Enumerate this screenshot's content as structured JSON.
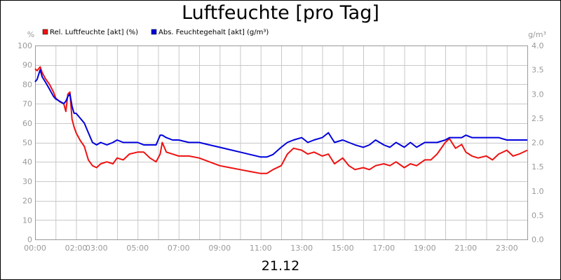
{
  "chart_data": {
    "type": "line",
    "title": "Luftfeuchte [pro Tag]",
    "xlabel": "21.12",
    "ylabel_left": "%",
    "ylabel_right": "g/m³",
    "ylim_left": [
      0,
      100
    ],
    "ylim_right": [
      0,
      4.0
    ],
    "left_ticks": [
      "0",
      "10",
      "20",
      "30",
      "40",
      "50",
      "60",
      "70",
      "80",
      "90",
      "100"
    ],
    "right_ticks": [
      "0.0",
      "0.5",
      "1.0",
      "1.5",
      "2.0",
      "2.5",
      "3.0",
      "3.5",
      "4.0"
    ],
    "x_ticks": [
      "00:00",
      "02:00",
      "03:00",
      "05:00",
      "07:00",
      "09:00",
      "11:00",
      "13:00",
      "15:00",
      "17:00",
      "19:00",
      "21:00",
      "23:00"
    ],
    "x_tick_hours": [
      0,
      2,
      3,
      5,
      7,
      9,
      11,
      13,
      15,
      17,
      19,
      21,
      23
    ],
    "x_range_hours": [
      0,
      24
    ],
    "grid": true,
    "legend_position": "top-left",
    "series": [
      {
        "name": "Rel. Luftfeuchte [akt] (%)",
        "axis": "left",
        "color": "#ee1111",
        "x": [
          0,
          0.1,
          0.25,
          0.35,
          0.5,
          0.7,
          0.9,
          1.0,
          1.2,
          1.4,
          1.5,
          1.6,
          1.7,
          1.8,
          1.9,
          2.0,
          2.2,
          2.4,
          2.6,
          2.8,
          3.0,
          3.2,
          3.5,
          3.8,
          4.0,
          4.3,
          4.6,
          5.0,
          5.3,
          5.6,
          5.9,
          6.1,
          6.2,
          6.4,
          6.7,
          7.0,
          7.5,
          8.0,
          8.5,
          9.0,
          9.5,
          10.0,
          10.5,
          11.0,
          11.3,
          11.6,
          12.0,
          12.3,
          12.6,
          13.0,
          13.3,
          13.6,
          14.0,
          14.3,
          14.6,
          15.0,
          15.3,
          15.6,
          16.0,
          16.3,
          16.6,
          17.0,
          17.3,
          17.6,
          18.0,
          18.3,
          18.6,
          19.0,
          19.3,
          19.6,
          20.0,
          20.2,
          20.5,
          20.8,
          21.0,
          21.3,
          21.6,
          22.0,
          22.3,
          22.6,
          23.0,
          23.3,
          23.6,
          24.0
        ],
        "values": [
          88,
          87,
          89,
          86,
          83,
          80,
          76,
          73,
          71,
          70,
          66,
          75,
          76,
          62,
          58,
          55,
          51,
          48,
          41,
          38,
          37,
          39,
          40,
          39,
          42,
          41,
          44,
          45,
          45,
          42,
          40,
          44,
          50,
          45,
          44,
          43,
          43,
          42,
          40,
          38,
          37,
          36,
          35,
          34,
          34,
          36,
          38,
          44,
          47,
          46,
          44,
          45,
          43,
          44,
          39,
          42,
          38,
          36,
          37,
          36,
          38,
          39,
          38,
          40,
          37,
          39,
          38,
          41,
          41,
          44,
          50,
          52,
          47,
          49,
          45,
          43,
          42,
          43,
          41,
          44,
          46,
          43,
          44,
          46
        ]
      },
      {
        "name": "Abs. Feuchtegehalt [akt] (g/m³)",
        "axis": "right",
        "color": "#0000dd",
        "x": [
          0,
          0.1,
          0.25,
          0.35,
          0.5,
          0.7,
          0.9,
          1.0,
          1.2,
          1.4,
          1.5,
          1.6,
          1.7,
          1.8,
          1.9,
          2.0,
          2.2,
          2.4,
          2.6,
          2.8,
          3.0,
          3.2,
          3.5,
          3.8,
          4.0,
          4.3,
          4.6,
          5.0,
          5.3,
          5.6,
          5.9,
          6.1,
          6.2,
          6.4,
          6.7,
          7.0,
          7.5,
          8.0,
          8.5,
          9.0,
          9.5,
          10.0,
          10.5,
          11.0,
          11.3,
          11.6,
          12.0,
          12.3,
          12.6,
          13.0,
          13.3,
          13.6,
          14.0,
          14.3,
          14.6,
          15.0,
          15.3,
          15.6,
          16.0,
          16.3,
          16.6,
          17.0,
          17.3,
          17.6,
          18.0,
          18.3,
          18.6,
          19.0,
          19.3,
          19.6,
          20.0,
          20.2,
          20.5,
          20.8,
          21.0,
          21.3,
          21.6,
          22.0,
          22.3,
          22.6,
          23.0,
          23.3,
          23.6,
          24.0
        ],
        "values": [
          3.25,
          3.3,
          3.5,
          3.35,
          3.25,
          3.1,
          2.95,
          2.9,
          2.85,
          2.8,
          2.85,
          2.95,
          3.0,
          2.75,
          2.6,
          2.6,
          2.5,
          2.4,
          2.2,
          2.0,
          1.95,
          2.0,
          1.95,
          2.0,
          2.05,
          2.0,
          2.0,
          2.0,
          1.95,
          1.95,
          1.95,
          2.15,
          2.15,
          2.1,
          2.05,
          2.05,
          2.0,
          2.0,
          1.95,
          1.9,
          1.85,
          1.8,
          1.75,
          1.7,
          1.7,
          1.75,
          1.9,
          2.0,
          2.05,
          2.1,
          2.0,
          2.05,
          2.1,
          2.2,
          2.0,
          2.05,
          2.0,
          1.95,
          1.9,
          1.95,
          2.05,
          1.95,
          1.9,
          2.0,
          1.9,
          2.0,
          1.9,
          2.0,
          2.0,
          2.0,
          2.05,
          2.1,
          2.1,
          2.1,
          2.15,
          2.1,
          2.1,
          2.1,
          2.1,
          2.1,
          2.05,
          2.05,
          2.05,
          2.05
        ]
      }
    ]
  }
}
